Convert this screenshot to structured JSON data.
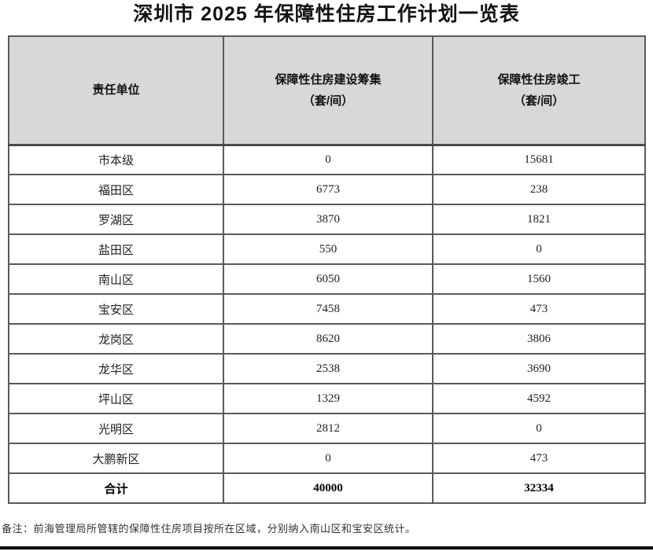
{
  "page": {
    "title": "深圳市 2025 年保障性住房工作计划一览表"
  },
  "table": {
    "headers": {
      "col1": "责任单位",
      "col2_line1": "保障性住房建设筹集",
      "col2_line2": "（套/间）",
      "col3_line1": "保障性住房竣工",
      "col3_line2": "（套/间）"
    },
    "rows": [
      {
        "unit": "市本级",
        "construction": "0",
        "completion": "15681"
      },
      {
        "unit": "福田区",
        "construction": "6773",
        "completion": "238"
      },
      {
        "unit": "罗湖区",
        "construction": "3870",
        "completion": "1821"
      },
      {
        "unit": "盐田区",
        "construction": "550",
        "completion": "0"
      },
      {
        "unit": "南山区",
        "construction": "6050",
        "completion": "1560"
      },
      {
        "unit": "宝安区",
        "construction": "7458",
        "completion": "473"
      },
      {
        "unit": "龙岗区",
        "construction": "8620",
        "completion": "3806"
      },
      {
        "unit": "龙华区",
        "construction": "2538",
        "completion": "3690"
      },
      {
        "unit": "坪山区",
        "construction": "1329",
        "completion": "4592"
      },
      {
        "unit": "光明区",
        "construction": "2812",
        "completion": "0"
      },
      {
        "unit": "大鹏新区",
        "construction": "0",
        "completion": "473"
      }
    ],
    "total_row": {
      "unit": "合计",
      "construction": "40000",
      "completion": "32334"
    }
  },
  "note": "备注：前海管理局所管辖的保障性住房项目按所在区域，分别纳入南山区和宝安区统计。",
  "colors": {
    "header_bg": "#d8d8d8",
    "outer_border": "#1f1f1f",
    "inner_border": "#5a5a5a",
    "title_text": "#121212",
    "body_text": "#222222",
    "note_text": "#333333",
    "bottom_rule": "#000000"
  }
}
